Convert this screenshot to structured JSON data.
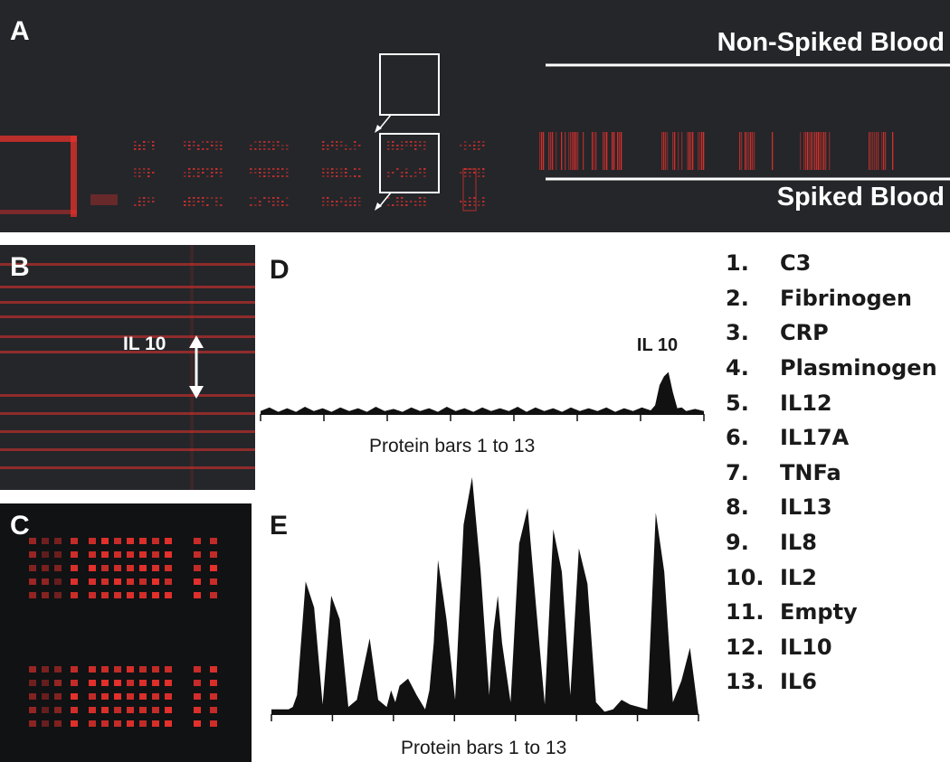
{
  "panels": {
    "a": {
      "label": "A",
      "top_text": "Non-Spiked Blood",
      "bottom_text": "Spiked Blood"
    },
    "b": {
      "label": "B",
      "annotation": "IL 10"
    },
    "c": {
      "label": "C"
    },
    "d": {
      "label": "D"
    },
    "e": {
      "label": "E"
    }
  },
  "legend": [
    {
      "num": "1.",
      "name": "C3"
    },
    {
      "num": "2.",
      "name": "Fibrinogen"
    },
    {
      "num": "3.",
      "name": "CRP"
    },
    {
      "num": "4.",
      "name": "Plasminogen"
    },
    {
      "num": "5.",
      "name": "IL12"
    },
    {
      "num": "6.",
      "name": "IL17A"
    },
    {
      "num": "7.",
      "name": "TNFa"
    },
    {
      "num": "8.",
      "name": "IL13"
    },
    {
      "num": "9.",
      "name": "IL8"
    },
    {
      "num": "10.",
      "name": "IL2"
    },
    {
      "num": "11.",
      "name": "Empty"
    },
    {
      "num": "12.",
      "name": "IL10"
    },
    {
      "num": "13.",
      "name": "IL6"
    }
  ],
  "colors": {
    "fluorescence": "#e8312c",
    "background": "#24262a",
    "profile_fill": "#111111"
  },
  "chart_data": [
    {
      "id": "D",
      "type": "area",
      "xlabel": "Protein bars 1 to 13",
      "peak_annotation": "IL 10",
      "ylim": [
        0,
        100
      ],
      "x": [
        0,
        2,
        4,
        6,
        8,
        10,
        12,
        14,
        16,
        18,
        20,
        22,
        24,
        26,
        28,
        30,
        32,
        34,
        36,
        38,
        40,
        42,
        44,
        46,
        48,
        50,
        52,
        54,
        56,
        58,
        60,
        62,
        64,
        66,
        68,
        70,
        72,
        74,
        76,
        78,
        80,
        82,
        84,
        86,
        88,
        89,
        90,
        91,
        92,
        93,
        94,
        95,
        96,
        98,
        100
      ],
      "values": [
        4,
        9,
        3,
        8,
        3,
        10,
        4,
        8,
        3,
        9,
        4,
        8,
        3,
        10,
        4,
        7,
        3,
        9,
        4,
        8,
        3,
        10,
        4,
        8,
        3,
        9,
        4,
        8,
        4,
        10,
        3,
        9,
        4,
        8,
        3,
        9,
        4,
        8,
        4,
        9,
        3,
        8,
        4,
        9,
        5,
        12,
        40,
        52,
        58,
        30,
        8,
        9,
        4,
        7,
        4
      ]
    },
    {
      "id": "E",
      "type": "area",
      "xlabel": "Protein bars 1 to 13",
      "ylim": [
        0,
        100
      ],
      "x": [
        0,
        2,
        4,
        5,
        6,
        8,
        10,
        12,
        14,
        16,
        18,
        20,
        23,
        25,
        27,
        28,
        29,
        30,
        32,
        34,
        36,
        37,
        38,
        39,
        41,
        43,
        45,
        47,
        49,
        51,
        52,
        53,
        54,
        56,
        58,
        60,
        62,
        64,
        66,
        68,
        70,
        72,
        74,
        76,
        78,
        80,
        82,
        84,
        86,
        88,
        90,
        92,
        94,
        96,
        98,
        99,
        100
      ],
      "values": [
        2,
        2,
        2,
        3,
        8,
        56,
        45,
        4,
        50,
        40,
        3,
        6,
        32,
        6,
        3,
        10,
        5,
        12,
        15,
        8,
        2,
        10,
        30,
        65,
        40,
        6,
        80,
        100,
        60,
        8,
        35,
        50,
        30,
        5,
        72,
        87,
        45,
        4,
        78,
        60,
        8,
        70,
        55,
        5,
        1,
        2,
        6,
        4,
        3,
        2,
        85,
        60,
        5,
        14,
        28,
        14,
        0
      ]
    }
  ]
}
